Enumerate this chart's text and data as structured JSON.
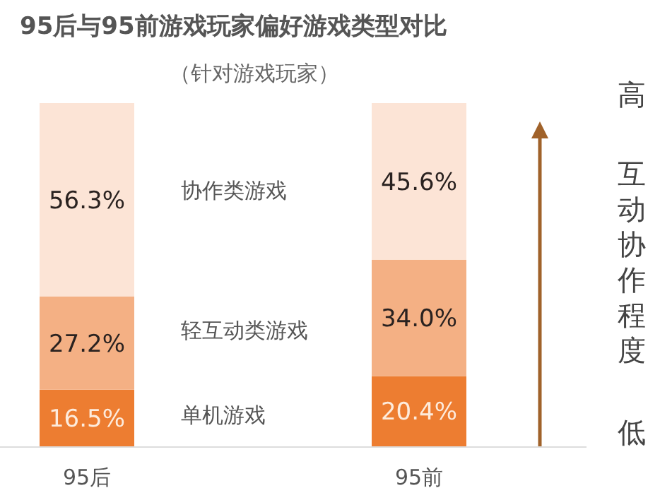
{
  "chart_data": {
    "type": "bar",
    "title": "95后与95前游戏玩家偏好游戏类型对比",
    "subtitle": "（针对游戏玩家）",
    "categories": [
      "95后",
      "95前"
    ],
    "stacked": true,
    "series": [
      {
        "name": "单机游戏",
        "color": "#ed7d31",
        "values": [
          16.5,
          20.4
        ],
        "value_labels": [
          "16.5%",
          "20.4%"
        ]
      },
      {
        "name": "轻互动类游戏",
        "color": "#f4b084",
        "values": [
          27.2,
          34.0
        ],
        "value_labels": [
          "27.2%",
          "34.0%"
        ]
      },
      {
        "name": "协作类游戏",
        "color": "#fce4d6",
        "values": [
          56.3,
          45.6
        ],
        "value_labels": [
          "56.3%",
          "45.6%"
        ]
      }
    ],
    "annotations": [
      "高",
      "互动协作程度",
      "低"
    ]
  }
}
